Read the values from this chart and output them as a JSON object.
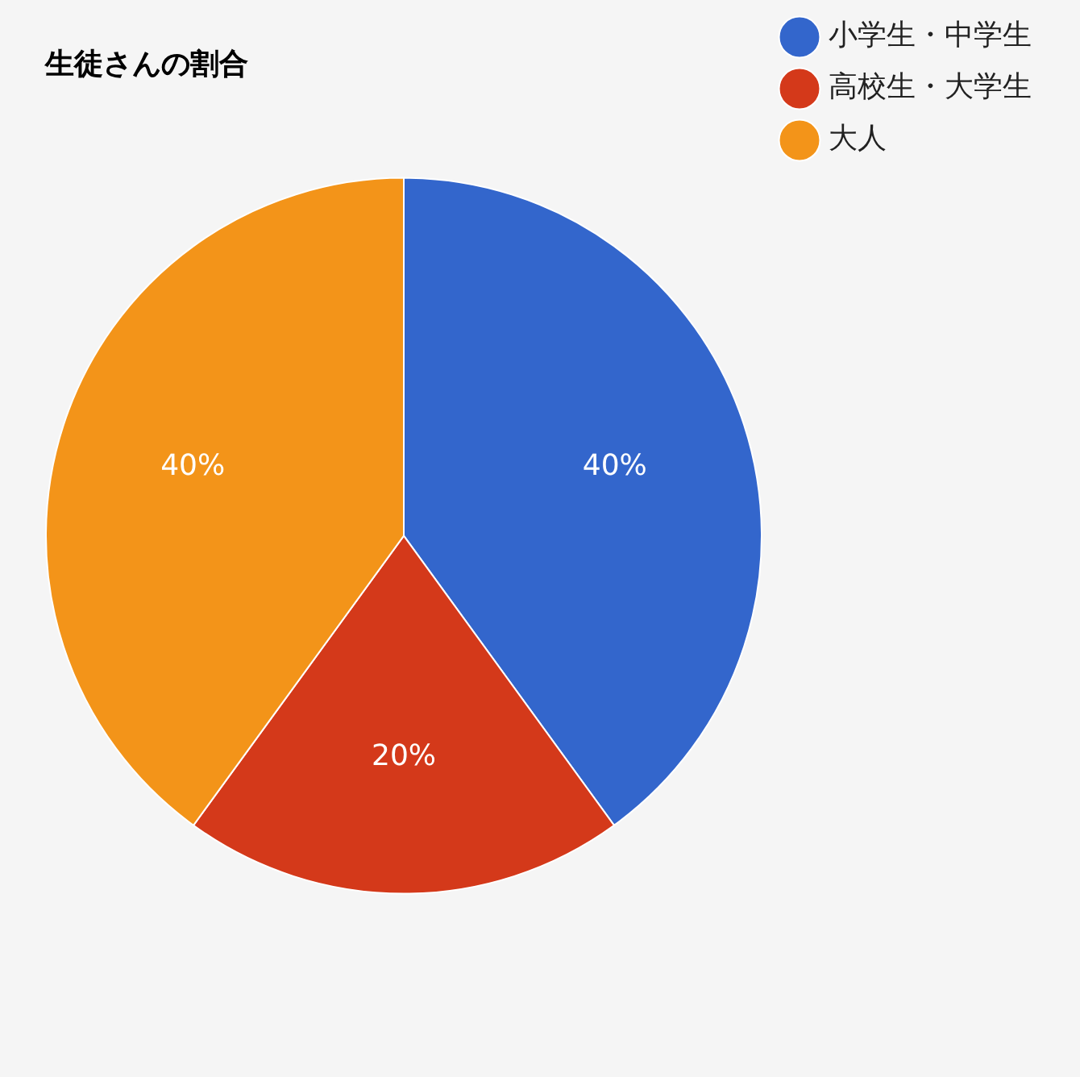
{
  "chart_data": {
    "type": "pie",
    "title": "生徒さんの割合",
    "categories": [
      "小学生・中学生",
      "高校生・大学生",
      "大人"
    ],
    "values": [
      40,
      20,
      40
    ],
    "colors": [
      "#3366cc",
      "#d4391a",
      "#f39419"
    ],
    "value_labels": [
      "40%",
      "20%",
      "40%"
    ],
    "legend": "top right"
  }
}
